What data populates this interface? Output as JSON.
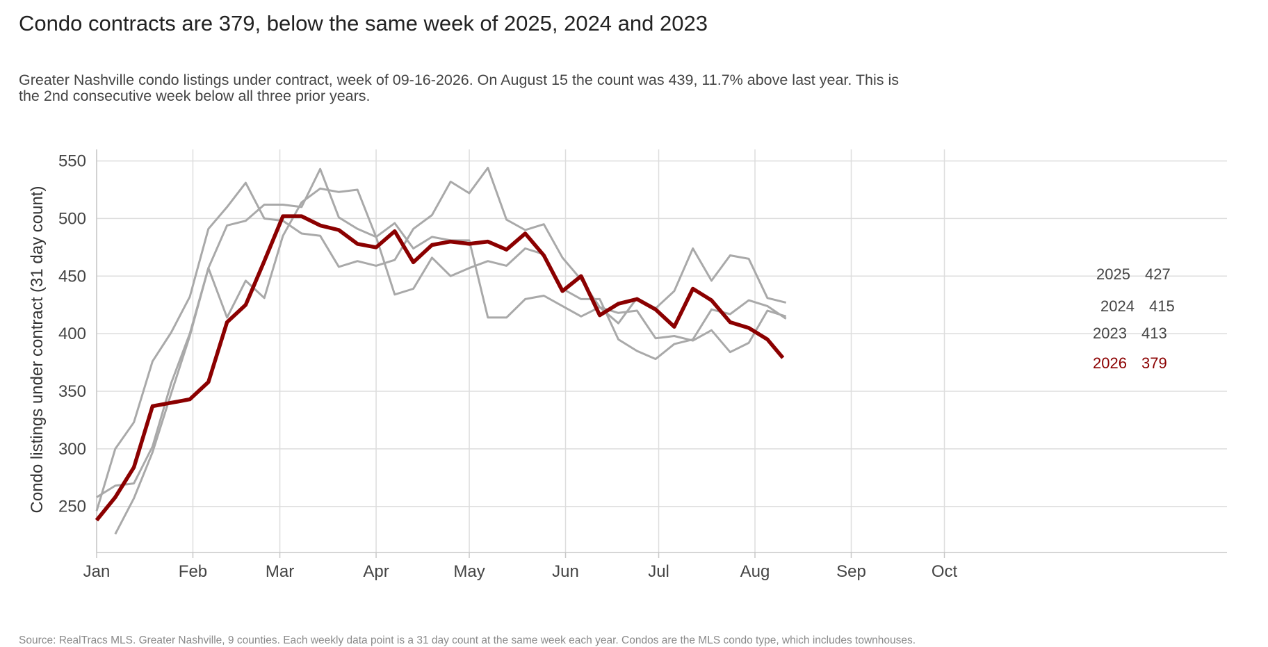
{
  "header": {
    "title": "Condo contracts are 379, below the same week of 2025, 2024 and 2023",
    "subtitle": "Greater Nashville condo listings under contract, week of 09-16-2026. On August 15 the count was 439, 11.7% above last year. This is the 2nd consecutive week below all three prior years."
  },
  "footer": {
    "source": "Source: RealTracs MLS. Greater Nashville, 9 counties. Each weekly data point is a 31 day count at the same week each year. Condos are the MLS condo type, which includes townhouses."
  },
  "chart_data": {
    "type": "line",
    "ylabel": "Condo listings under contract (31 day count)",
    "xlabel": "",
    "x_unit": "day of year",
    "xlim": [
      1,
      365
    ],
    "ylim": [
      210,
      560
    ],
    "x_ticks": [
      {
        "day": 1,
        "label": "Jan"
      },
      {
        "day": 32,
        "label": "Feb"
      },
      {
        "day": 60,
        "label": "Mar"
      },
      {
        "day": 91,
        "label": "Apr"
      },
      {
        "day": 121,
        "label": "May"
      },
      {
        "day": 152,
        "label": "Jun"
      },
      {
        "day": 182,
        "label": "Jul"
      },
      {
        "day": 213,
        "label": "Aug"
      },
      {
        "day": 244,
        "label": "Sep"
      },
      {
        "day": 274,
        "label": "Oct"
      }
    ],
    "y_ticks": [
      250,
      300,
      350,
      400,
      450,
      500,
      550
    ],
    "grid": true,
    "colors": {
      "highlight": "#8b0000",
      "prior": "#a9a9a9",
      "grid": "#dddddd",
      "axis": "#c8c8c8"
    },
    "series": [
      {
        "name": "2023",
        "end_label": "2023",
        "end_value": "413",
        "color": "#a9a9a9",
        "highlight": false,
        "points": [
          [
            7,
            226
          ],
          [
            13,
            257
          ],
          [
            19,
            297
          ],
          [
            25,
            348
          ],
          [
            31,
            398
          ],
          [
            37,
            457
          ],
          [
            43,
            494
          ],
          [
            49,
            498
          ],
          [
            55,
            512
          ],
          [
            61,
            512
          ],
          [
            67,
            510
          ],
          [
            73,
            543
          ],
          [
            79,
            501
          ],
          [
            85,
            491
          ],
          [
            91,
            484
          ],
          [
            97,
            434
          ],
          [
            103,
            439
          ],
          [
            109,
            466
          ],
          [
            115,
            450
          ],
          [
            121,
            457
          ],
          [
            127,
            463
          ],
          [
            133,
            459
          ],
          [
            139,
            474
          ],
          [
            145,
            469
          ],
          [
            151,
            439
          ],
          [
            157,
            430
          ],
          [
            163,
            430
          ],
          [
            169,
            395
          ],
          [
            175,
            385
          ],
          [
            181,
            378
          ],
          [
            187,
            391
          ],
          [
            193,
            395
          ],
          [
            199,
            421
          ],
          [
            205,
            417
          ],
          [
            211,
            429
          ],
          [
            217,
            424
          ],
          [
            223,
            413
          ]
        ]
      },
      {
        "name": "2024",
        "end_label": "2024",
        "end_value": "415",
        "color": "#a9a9a9",
        "highlight": false,
        "points": [
          [
            1,
            258
          ],
          [
            7,
            268
          ],
          [
            13,
            270
          ],
          [
            19,
            302
          ],
          [
            25,
            357
          ],
          [
            31,
            400
          ],
          [
            37,
            457
          ],
          [
            43,
            414
          ],
          [
            49,
            446
          ],
          [
            55,
            431
          ],
          [
            61,
            485
          ],
          [
            67,
            514
          ],
          [
            73,
            526
          ],
          [
            79,
            523
          ],
          [
            85,
            525
          ],
          [
            91,
            484
          ],
          [
            97,
            496
          ],
          [
            103,
            474
          ],
          [
            109,
            484
          ],
          [
            115,
            481
          ],
          [
            121,
            481
          ],
          [
            127,
            414
          ],
          [
            133,
            414
          ],
          [
            139,
            430
          ],
          [
            145,
            433
          ],
          [
            151,
            424
          ],
          [
            157,
            415
          ],
          [
            163,
            423
          ],
          [
            169,
            418
          ],
          [
            175,
            420
          ],
          [
            181,
            396
          ],
          [
            187,
            398
          ],
          [
            193,
            394
          ],
          [
            199,
            403
          ],
          [
            205,
            384
          ],
          [
            211,
            392
          ],
          [
            217,
            420
          ],
          [
            223,
            415
          ]
        ]
      },
      {
        "name": "2025",
        "end_label": "2025",
        "end_value": "427",
        "color": "#a9a9a9",
        "highlight": false,
        "points": [
          [
            1,
            246
          ],
          [
            7,
            300
          ],
          [
            13,
            323
          ],
          [
            19,
            376
          ],
          [
            25,
            401
          ],
          [
            31,
            432
          ],
          [
            37,
            491
          ],
          [
            43,
            510
          ],
          [
            49,
            531
          ],
          [
            55,
            500
          ],
          [
            61,
            498
          ],
          [
            67,
            487
          ],
          [
            73,
            485
          ],
          [
            79,
            458
          ],
          [
            85,
            463
          ],
          [
            91,
            459
          ],
          [
            97,
            464
          ],
          [
            103,
            491
          ],
          [
            109,
            503
          ],
          [
            115,
            532
          ],
          [
            121,
            522
          ],
          [
            127,
            544
          ],
          [
            133,
            499
          ],
          [
            139,
            490
          ],
          [
            145,
            495
          ],
          [
            151,
            466
          ],
          [
            157,
            447
          ],
          [
            163,
            423
          ],
          [
            169,
            409
          ],
          [
            175,
            431
          ],
          [
            181,
            422
          ],
          [
            187,
            437
          ],
          [
            193,
            474
          ],
          [
            199,
            446
          ],
          [
            205,
            468
          ],
          [
            211,
            465
          ],
          [
            217,
            431
          ],
          [
            223,
            427
          ]
        ]
      },
      {
        "name": "2026",
        "end_label": "2026",
        "end_value": "379",
        "color": "#8b0000",
        "highlight": true,
        "points": [
          [
            1,
            238
          ],
          [
            7,
            258
          ],
          [
            13,
            284
          ],
          [
            19,
            337
          ],
          [
            25,
            340
          ],
          [
            31,
            343
          ],
          [
            37,
            358
          ],
          [
            43,
            410
          ],
          [
            49,
            425
          ],
          [
            55,
            463
          ],
          [
            61,
            502
          ],
          [
            67,
            502
          ],
          [
            73,
            494
          ],
          [
            79,
            490
          ],
          [
            85,
            478
          ],
          [
            91,
            475
          ],
          [
            97,
            489
          ],
          [
            103,
            462
          ],
          [
            109,
            477
          ],
          [
            115,
            480
          ],
          [
            121,
            478
          ],
          [
            127,
            480
          ],
          [
            133,
            473
          ],
          [
            139,
            487
          ],
          [
            145,
            468
          ],
          [
            151,
            437
          ],
          [
            157,
            450
          ],
          [
            163,
            416
          ],
          [
            169,
            426
          ],
          [
            175,
            430
          ],
          [
            181,
            421
          ],
          [
            187,
            406
          ],
          [
            193,
            439
          ],
          [
            199,
            429
          ],
          [
            205,
            410
          ],
          [
            211,
            405
          ],
          [
            217,
            395
          ],
          [
            222,
            379
          ]
        ]
      }
    ]
  }
}
